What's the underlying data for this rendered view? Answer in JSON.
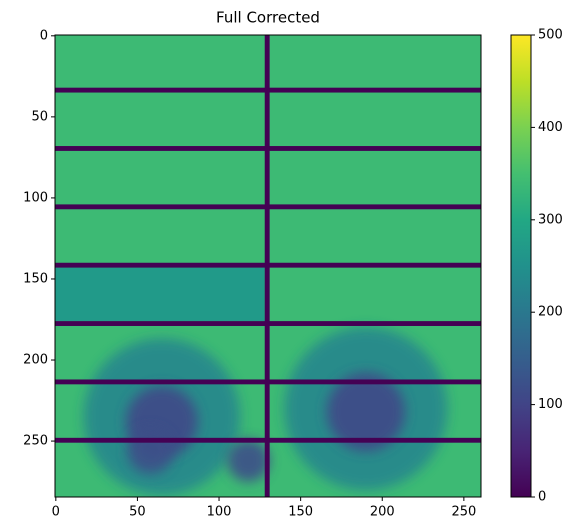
{
  "chart_data": {
    "type": "image",
    "title": "Full Corrected",
    "xlim": [
      -0.5,
      260.5
    ],
    "ylim": [
      284.5,
      -0.5
    ],
    "xticks": [
      0,
      50,
      100,
      150,
      200,
      250
    ],
    "yticks": [
      0,
      50,
      100,
      150,
      200,
      250
    ],
    "colormap": [
      "#440154",
      "#482475",
      "#414487",
      "#355f8d",
      "#2a788e",
      "#21918c",
      "#22a884",
      "#44bf70",
      "#7ad151",
      "#bddf26",
      "#fde725"
    ],
    "clim": [
      0,
      500
    ],
    "cticks": [
      0,
      100,
      200,
      300,
      400,
      500
    ],
    "background_value": 340,
    "gap_value": 0,
    "row_gaps": [
      [
        32,
        35
      ],
      [
        68,
        71
      ],
      [
        104,
        107
      ],
      [
        140,
        143
      ],
      [
        176,
        179
      ],
      [
        212,
        215
      ],
      [
        248,
        251
      ]
    ],
    "col_gaps": [
      [
        128,
        131
      ]
    ],
    "regions": [
      {
        "x": [
          -0.5,
          128
        ],
        "y": [
          143,
          176
        ],
        "value": 270
      }
    ],
    "blobs": [
      {
        "x": 65,
        "y": 235,
        "r": 48,
        "value": 230
      },
      {
        "x": 190,
        "y": 230,
        "r": 50,
        "value": 230
      },
      {
        "x": 65,
        "y": 238,
        "r": 22,
        "value": 110
      },
      {
        "x": 190,
        "y": 232,
        "r": 24,
        "value": 110
      },
      {
        "x": 58,
        "y": 256,
        "r": 14,
        "value": 120
      },
      {
        "x": 118,
        "y": 262,
        "r": 13,
        "value": 120
      }
    ]
  }
}
